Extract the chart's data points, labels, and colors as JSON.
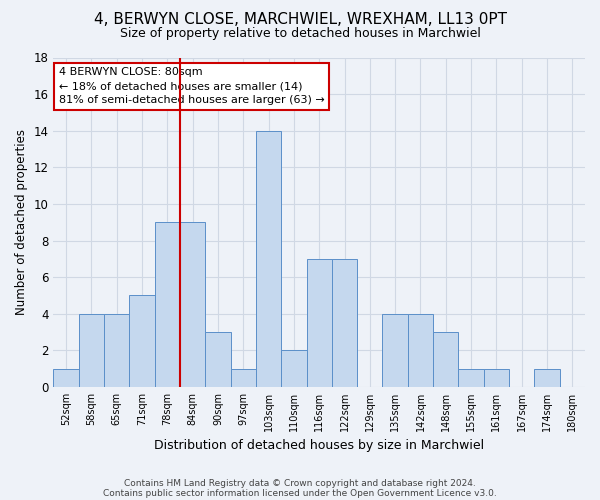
{
  "title": "4, BERWYN CLOSE, MARCHWIEL, WREXHAM, LL13 0PT",
  "subtitle": "Size of property relative to detached houses in Marchwiel",
  "xlabel": "Distribution of detached houses by size in Marchwiel",
  "ylabel": "Number of detached properties",
  "bin_labels": [
    "52sqm",
    "58sqm",
    "65sqm",
    "71sqm",
    "78sqm",
    "84sqm",
    "90sqm",
    "97sqm",
    "103sqm",
    "110sqm",
    "116sqm",
    "122sqm",
    "129sqm",
    "135sqm",
    "142sqm",
    "148sqm",
    "155sqm",
    "161sqm",
    "167sqm",
    "174sqm",
    "180sqm"
  ],
  "bar_values": [
    1,
    4,
    4,
    5,
    9,
    9,
    3,
    1,
    14,
    2,
    7,
    7,
    0,
    4,
    4,
    3,
    1,
    1,
    0,
    1,
    0
  ],
  "bar_color": "#c5d8ee",
  "bar_edge_color": "#5b8fc9",
  "grid_color": "#d0d8e4",
  "background_color": "#eef2f8",
  "vline_x_index": 4.5,
  "vline_color": "#cc0000",
  "annotation_line1": "4 BERWYN CLOSE: 80sqm",
  "annotation_line2": "← 18% of detached houses are smaller (14)",
  "annotation_line3": "81% of semi-detached houses are larger (63) →",
  "annotation_box_color": "#ffffff",
  "annotation_box_edge_color": "#cc0000",
  "ylim": [
    0,
    18
  ],
  "yticks": [
    0,
    2,
    4,
    6,
    8,
    10,
    12,
    14,
    16,
    18
  ],
  "footnote_line1": "Contains HM Land Registry data © Crown copyright and database right 2024.",
  "footnote_line2": "Contains public sector information licensed under the Open Government Licence v3.0.",
  "figsize": [
    6.0,
    5.0
  ],
  "dpi": 100
}
